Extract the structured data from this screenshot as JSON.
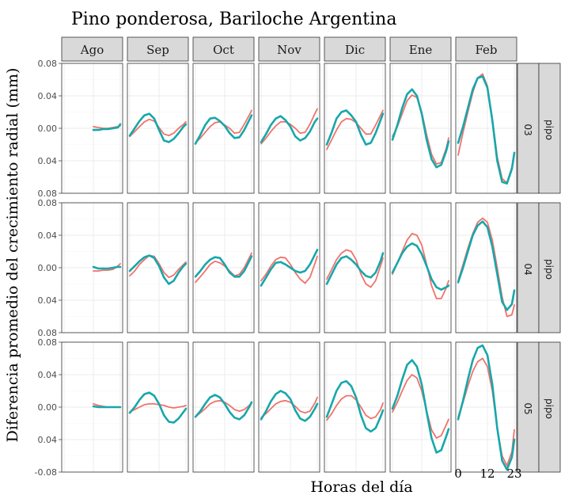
{
  "chart_data": {
    "type": "line",
    "title": "Pino ponderosa, Bariloche Argentina",
    "xlabel": "Horas del día",
    "ylabel": "Diferencia promedio del crecimiento radial (mm)",
    "x_ticks": [
      "0",
      "12",
      "23"
    ],
    "x_range": [
      0,
      23
    ],
    "ylim": [
      -0.08,
      0.08
    ],
    "y_tick_labels": [
      "0.08",
      "0.04",
      "0.00",
      "0.04",
      "-0.08"
    ],
    "y_tick_values": [
      0.08,
      0.04,
      0.0,
      -0.04,
      -0.08
    ],
    "grid": true,
    "columns": [
      "Ago",
      "Sep",
      "Oct",
      "Nov",
      "Dic",
      "Ene",
      "Feb"
    ],
    "rows": [
      {
        "panel_labels": [
          "pipo",
          "03"
        ],
        "y_tick_labels": [
          "0.08",
          "0.04",
          "0.00",
          "0.04",
          "0.08"
        ]
      },
      {
        "panel_labels": [
          "pipo",
          "04"
        ],
        "y_tick_labels": [
          "0.08",
          "0.04",
          "0.00",
          "0.04",
          "0.08"
        ]
      },
      {
        "panel_labels": [
          "pipo",
          "05"
        ],
        "y_tick_labels": [
          "0.08",
          "0.04",
          "0.00",
          "0.04",
          "-0.08"
        ]
      }
    ],
    "series_colors": [
      "#f0726b",
      "#17a7ab"
    ],
    "hours": [
      0,
      2,
      4,
      6,
      8,
      10,
      12,
      14,
      16,
      18,
      20,
      22,
      23
    ],
    "ago_hours": [
      12,
      14,
      16,
      18,
      20,
      22,
      23
    ],
    "panels": [
      {
        "row": 0,
        "col": 0,
        "red": [
          0.002,
          0.001,
          0.0,
          0.0,
          0.001,
          0.002,
          0.003
        ],
        "teal": [
          -0.002,
          -0.002,
          -0.001,
          -0.001,
          0.0,
          0.001,
          0.005
        ]
      },
      {
        "row": 0,
        "col": 1,
        "red": [
          -0.01,
          -0.004,
          0.002,
          0.008,
          0.011,
          0.009,
          0.001,
          -0.007,
          -0.009,
          -0.006,
          0.0,
          0.005,
          0.008
        ]
      },
      {
        "row": 0,
        "col": 1,
        "teal": [
          -0.009,
          0.0,
          0.009,
          0.016,
          0.018,
          0.012,
          -0.002,
          -0.015,
          -0.017,
          -0.013,
          -0.006,
          0.002,
          0.005
        ]
      },
      {
        "row": 0,
        "col": 2,
        "red": [
          -0.018,
          -0.012,
          -0.005,
          0.002,
          0.007,
          0.008,
          0.004,
          0.0,
          -0.006,
          -0.005,
          0.005,
          0.016,
          0.022
        ]
      },
      {
        "row": 0,
        "col": 2,
        "teal": [
          -0.019,
          -0.008,
          0.004,
          0.012,
          0.013,
          0.009,
          0.003,
          -0.006,
          -0.012,
          -0.011,
          -0.002,
          0.01,
          0.016
        ]
      },
      {
        "row": 0,
        "col": 3,
        "red": [
          -0.019,
          -0.012,
          -0.004,
          0.003,
          0.008,
          0.008,
          0.005,
          0.0,
          -0.006,
          -0.005,
          0.005,
          0.018,
          0.024
        ]
      },
      {
        "row": 0,
        "col": 3,
        "teal": [
          -0.017,
          -0.007,
          0.004,
          0.012,
          0.015,
          0.01,
          0.002,
          -0.01,
          -0.015,
          -0.012,
          -0.004,
          0.008,
          0.012
        ]
      },
      {
        "row": 0,
        "col": 4,
        "red": [
          -0.026,
          -0.014,
          -0.002,
          0.008,
          0.012,
          0.011,
          0.007,
          0.0,
          -0.007,
          -0.007,
          0.004,
          0.016,
          0.022
        ]
      },
      {
        "row": 0,
        "col": 4,
        "teal": [
          -0.02,
          -0.005,
          0.012,
          0.02,
          0.022,
          0.016,
          0.008,
          -0.008,
          -0.02,
          -0.018,
          -0.006,
          0.01,
          0.018
        ]
      },
      {
        "row": 0,
        "col": 5,
        "red": [
          -0.01,
          0.002,
          0.018,
          0.034,
          0.041,
          0.038,
          0.02,
          -0.008,
          -0.032,
          -0.044,
          -0.042,
          -0.025,
          -0.012
        ]
      },
      {
        "row": 0,
        "col": 5,
        "teal": [
          -0.014,
          0.004,
          0.025,
          0.042,
          0.048,
          0.04,
          0.018,
          -0.014,
          -0.038,
          -0.048,
          -0.045,
          -0.028,
          -0.016
        ]
      },
      {
        "row": 0,
        "col": 6,
        "red": [
          -0.033,
          -0.005,
          0.02,
          0.044,
          0.062,
          0.067,
          0.052,
          0.012,
          -0.035,
          -0.062,
          -0.067,
          -0.048,
          -0.033
        ]
      },
      {
        "row": 0,
        "col": 6,
        "teal": [
          -0.018,
          0.002,
          0.025,
          0.048,
          0.062,
          0.064,
          0.05,
          0.01,
          -0.04,
          -0.066,
          -0.068,
          -0.05,
          -0.03
        ]
      },
      {
        "row": 1,
        "col": 0,
        "red": [
          -0.004,
          -0.004,
          -0.003,
          -0.003,
          -0.002,
          0.002,
          0.005
        ],
        "teal": [
          0.001,
          -0.001,
          -0.001,
          -0.001,
          0.0,
          0.001,
          0.001
        ]
      },
      {
        "row": 1,
        "col": 1,
        "red": [
          -0.01,
          -0.004,
          0.004,
          0.01,
          0.015,
          0.014,
          0.005,
          -0.006,
          -0.012,
          -0.009,
          -0.002,
          0.004,
          0.007
        ]
      },
      {
        "row": 1,
        "col": 1,
        "teal": [
          -0.004,
          0.002,
          0.008,
          0.013,
          0.015,
          0.012,
          0.002,
          -0.012,
          -0.02,
          -0.016,
          -0.006,
          0.002,
          0.005
        ]
      },
      {
        "row": 1,
        "col": 2,
        "red": [
          -0.018,
          -0.011,
          -0.004,
          0.004,
          0.008,
          0.006,
          0.002,
          -0.004,
          -0.01,
          -0.008,
          0.0,
          0.012,
          0.018
        ]
      },
      {
        "row": 1,
        "col": 2,
        "teal": [
          -0.011,
          -0.004,
          0.004,
          0.01,
          0.013,
          0.012,
          0.004,
          -0.006,
          -0.011,
          -0.011,
          -0.004,
          0.008,
          0.014
        ]
      },
      {
        "row": 1,
        "col": 3,
        "red": [
          -0.016,
          -0.008,
          0.002,
          0.01,
          0.013,
          0.012,
          0.004,
          -0.006,
          -0.014,
          -0.019,
          -0.012,
          0.005,
          0.014
        ]
      },
      {
        "row": 1,
        "col": 3,
        "teal": [
          -0.022,
          -0.012,
          -0.002,
          0.006,
          0.007,
          0.004,
          0.0,
          -0.004,
          -0.006,
          -0.004,
          0.004,
          0.016,
          0.022
        ]
      },
      {
        "row": 1,
        "col": 4,
        "red": [
          -0.014,
          -0.002,
          0.01,
          0.018,
          0.022,
          0.02,
          0.01,
          -0.008,
          -0.02,
          -0.024,
          -0.016,
          0.002,
          0.012
        ]
      },
      {
        "row": 1,
        "col": 4,
        "teal": [
          -0.02,
          -0.008,
          0.004,
          0.012,
          0.014,
          0.01,
          0.004,
          -0.004,
          -0.01,
          -0.012,
          -0.006,
          0.008,
          0.018
        ]
      },
      {
        "row": 1,
        "col": 5,
        "red": [
          -0.008,
          0.006,
          0.02,
          0.034,
          0.042,
          0.04,
          0.028,
          0.004,
          -0.022,
          -0.038,
          -0.038,
          -0.025,
          -0.016
        ]
      },
      {
        "row": 1,
        "col": 5,
        "teal": [
          -0.006,
          0.006,
          0.018,
          0.026,
          0.03,
          0.027,
          0.017,
          0.002,
          -0.014,
          -0.024,
          -0.027,
          -0.024,
          -0.022
        ]
      },
      {
        "row": 1,
        "col": 6,
        "red": [
          -0.016,
          0.004,
          0.024,
          0.042,
          0.056,
          0.061,
          0.056,
          0.034,
          0.0,
          -0.036,
          -0.06,
          -0.058,
          -0.046
        ]
      },
      {
        "row": 1,
        "col": 6,
        "teal": [
          -0.018,
          0.0,
          0.02,
          0.04,
          0.052,
          0.057,
          0.05,
          0.026,
          -0.008,
          -0.042,
          -0.052,
          -0.045,
          -0.028
        ]
      },
      {
        "row": 2,
        "col": 0,
        "red": [
          0.004,
          0.002,
          0.001,
          0.0,
          0.0,
          0.0,
          0.0
        ],
        "teal": [
          0.001,
          0.0,
          0.0,
          0.0,
          0.0,
          0.0,
          0.0
        ]
      },
      {
        "row": 2,
        "col": 1,
        "red": [
          -0.006,
          -0.003,
          0.0,
          0.003,
          0.004,
          0.004,
          0.003,
          0.002,
          0.0,
          -0.001,
          0.0,
          0.001,
          0.002
        ]
      },
      {
        "row": 2,
        "col": 1,
        "teal": [
          -0.007,
          0.0,
          0.009,
          0.016,
          0.018,
          0.014,
          0.004,
          -0.01,
          -0.018,
          -0.019,
          -0.014,
          -0.006,
          -0.002
        ]
      },
      {
        "row": 2,
        "col": 2,
        "red": [
          -0.012,
          -0.007,
          -0.002,
          0.004,
          0.007,
          0.008,
          0.006,
          0.002,
          -0.003,
          -0.005,
          -0.003,
          0.002,
          0.006
        ]
      },
      {
        "row": 2,
        "col": 2,
        "teal": [
          -0.012,
          -0.005,
          0.004,
          0.012,
          0.015,
          0.012,
          0.004,
          -0.006,
          -0.013,
          -0.015,
          -0.01,
          0.0,
          0.006
        ]
      },
      {
        "row": 2,
        "col": 3,
        "red": [
          -0.013,
          -0.008,
          -0.002,
          0.004,
          0.007,
          0.008,
          0.006,
          0.001,
          -0.005,
          -0.007,
          -0.005,
          0.005,
          0.012
        ]
      },
      {
        "row": 2,
        "col": 3,
        "teal": [
          -0.015,
          -0.005,
          0.007,
          0.016,
          0.02,
          0.017,
          0.01,
          -0.004,
          -0.014,
          -0.017,
          -0.012,
          -0.002,
          0.004
        ]
      },
      {
        "row": 2,
        "col": 4,
        "red": [
          -0.016,
          -0.008,
          0.002,
          0.01,
          0.014,
          0.014,
          0.009,
          0.0,
          -0.01,
          -0.014,
          -0.012,
          -0.003,
          0.005
        ]
      },
      {
        "row": 2,
        "col": 4,
        "teal": [
          -0.012,
          0.004,
          0.02,
          0.03,
          0.032,
          0.026,
          0.012,
          -0.01,
          -0.026,
          -0.03,
          -0.026,
          -0.012,
          -0.004
        ]
      },
      {
        "row": 2,
        "col": 5,
        "red": [
          -0.006,
          0.006,
          0.02,
          0.033,
          0.04,
          0.036,
          0.02,
          -0.005,
          -0.028,
          -0.038,
          -0.035,
          -0.022,
          -0.015
        ]
      },
      {
        "row": 2,
        "col": 5,
        "teal": [
          -0.002,
          0.014,
          0.034,
          0.052,
          0.058,
          0.05,
          0.028,
          -0.006,
          -0.038,
          -0.056,
          -0.053,
          -0.036,
          -0.027
        ]
      },
      {
        "row": 2,
        "col": 6,
        "red": [
          -0.012,
          0.006,
          0.026,
          0.044,
          0.056,
          0.06,
          0.05,
          0.02,
          -0.026,
          -0.06,
          -0.072,
          -0.055,
          -0.028
        ]
      },
      {
        "row": 2,
        "col": 6,
        "teal": [
          -0.015,
          0.008,
          0.034,
          0.058,
          0.073,
          0.076,
          0.064,
          0.028,
          -0.026,
          -0.066,
          -0.077,
          -0.062,
          -0.04
        ]
      }
    ]
  }
}
